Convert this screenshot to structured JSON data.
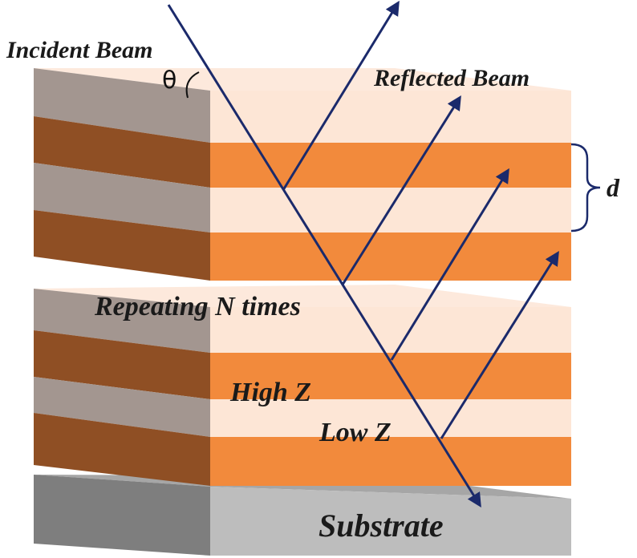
{
  "labels": {
    "incident_beam": "Incident Beam",
    "reflected_beam": "Reflected Beam",
    "theta": "θ",
    "d": "d",
    "repeating": "Repeating N times",
    "high_z": "High Z",
    "low_z": "Low Z",
    "substrate": "Substrate"
  },
  "colors": {
    "high_z_front": "#f28a3c",
    "high_z_side": "#8f4f24",
    "low_z_front": "#fde6d6",
    "low_z_side": "#a39690",
    "top_face": "#fde9dc",
    "substrate_front": "#bdbdbd",
    "substrate_side": "#7e7e7e",
    "substrate_top": "#a6a6a6",
    "beam": "#1b2a6b"
  }
}
